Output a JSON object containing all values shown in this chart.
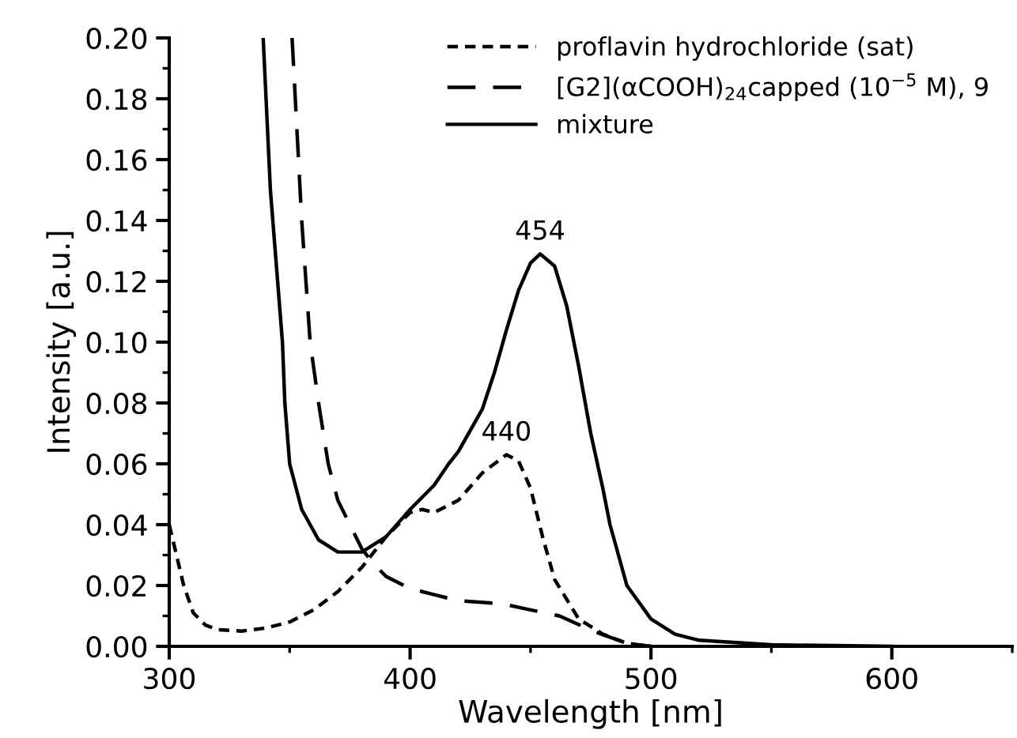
{
  "chart_data": {
    "type": "line",
    "xlabel": "Wavelength [nm]",
    "ylabel": "Intensity [a.u.]",
    "xlim": [
      300,
      650
    ],
    "xticks": [
      300,
      400,
      500,
      600
    ],
    "ylim": [
      0,
      0.2
    ],
    "yticks": [
      {
        "value": 0,
        "label": "0.00"
      },
      {
        "value": 0.02,
        "label": "0.02"
      },
      {
        "value": 0.04,
        "label": "0.04"
      },
      {
        "value": 0.06,
        "label": "0.06"
      },
      {
        "value": 0.08,
        "label": "0.08"
      },
      {
        "value": 0.1,
        "label": "0.10"
      },
      {
        "value": 0.12,
        "label": "0.12"
      },
      {
        "value": 0.14,
        "label": "0.14"
      },
      {
        "value": 0.16,
        "label": "0.16"
      },
      {
        "value": 0.18,
        "label": "0.18"
      },
      {
        "value": 0.2,
        "label": "0.20"
      }
    ],
    "grid": false,
    "legend": "top right",
    "marker": "none",
    "series": [
      {
        "name": "proflavin hydrochloride (sat)",
        "color": "#000000",
        "line_style": "dotted",
        "x": [
          300,
          303,
          306,
          310,
          315,
          320,
          330,
          340,
          350,
          360,
          370,
          380,
          390,
          400,
          405,
          410,
          420,
          430,
          440,
          445,
          450,
          455,
          460,
          470,
          480,
          490,
          500
        ],
        "values": [
          0.04,
          0.03,
          0.02,
          0.011,
          0.007,
          0.0055,
          0.005,
          0.006,
          0.008,
          0.012,
          0.018,
          0.026,
          0.036,
          0.044,
          0.045,
          0.044,
          0.048,
          0.057,
          0.063,
          0.061,
          0.052,
          0.036,
          0.022,
          0.009,
          0.004,
          0.001,
          0.0
        ]
      },
      {
        "name": "[G2](αCOOH)$_{24}$capped (10$^{−5}$ M), 9",
        "color": "#000000",
        "line_style": "dashed",
        "x": [
          351,
          355,
          358.5,
          362,
          366,
          370,
          375,
          380,
          385,
          390,
          400,
          410,
          420,
          438,
          450,
          462,
          476,
          490,
          500
        ],
        "values": [
          0.2,
          0.14,
          0.1,
          0.08,
          0.06,
          0.048,
          0.04,
          0.032,
          0.027,
          0.023,
          0.019,
          0.017,
          0.015,
          0.014,
          0.012,
          0.01,
          0.005,
          0.001,
          0.0
        ]
      },
      {
        "name": "mixture",
        "color": "#000000",
        "line_style": "solid",
        "x": [
          339,
          342,
          345,
          347,
          348,
          350,
          355,
          362,
          370,
          380,
          390,
          400,
          410,
          416,
          420,
          430,
          435,
          440,
          445,
          450,
          454,
          460,
          465,
          468,
          470,
          475,
          480,
          483,
          490,
          500,
          510,
          520,
          550,
          600
        ],
        "values": [
          0.2,
          0.15,
          0.12,
          0.1,
          0.08,
          0.06,
          0.045,
          0.035,
          0.031,
          0.031,
          0.036,
          0.045,
          0.053,
          0.06,
          0.064,
          0.078,
          0.09,
          0.104,
          0.117,
          0.126,
          0.129,
          0.125,
          0.112,
          0.1,
          0.092,
          0.07,
          0.052,
          0.04,
          0.02,
          0.009,
          0.004,
          0.002,
          0.0005,
          0.0
        ]
      }
    ],
    "annotations": [
      {
        "text": "454",
        "x": 454,
        "y": 0.129
      },
      {
        "text": "440",
        "x": 440,
        "y": 0.063
      }
    ]
  }
}
